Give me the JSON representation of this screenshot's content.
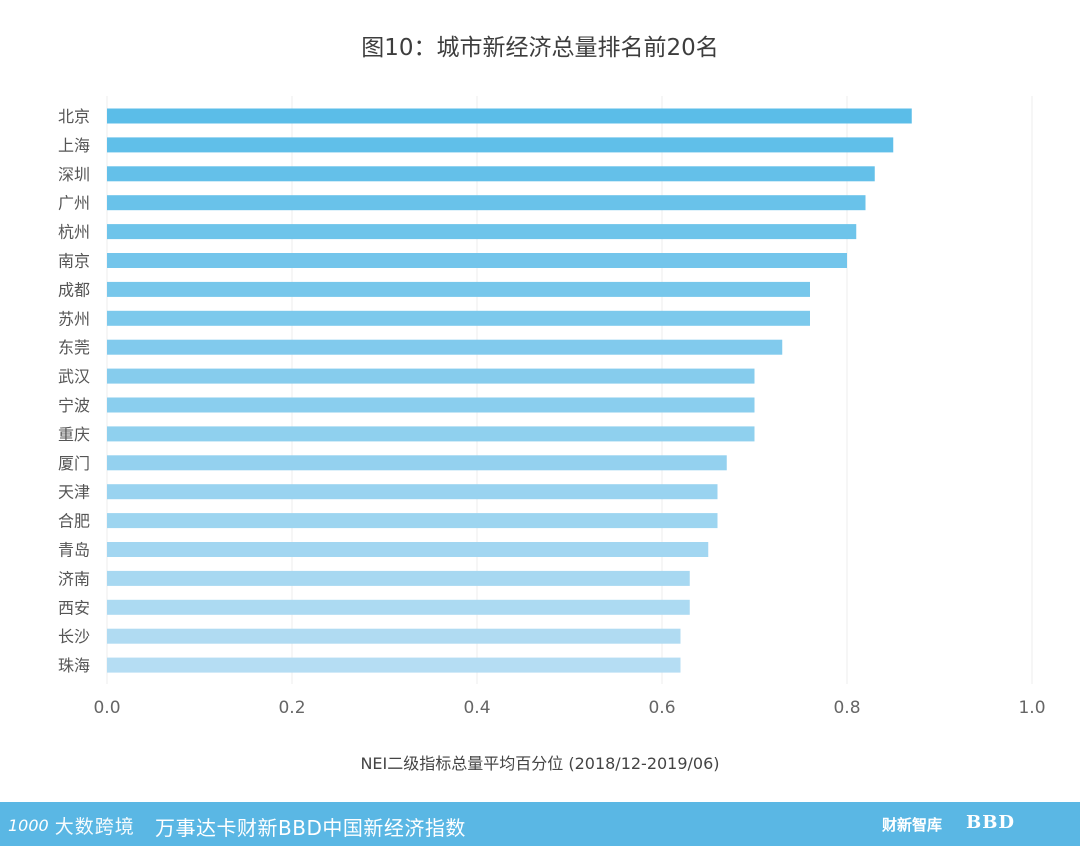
{
  "title": "图10：城市新经济总量排名前20名",
  "chart_data": {
    "type": "bar",
    "orientation": "horizontal",
    "categories": [
      "北京",
      "上海",
      "深圳",
      "广州",
      "杭州",
      "南京",
      "成都",
      "苏州",
      "东莞",
      "武汉",
      "宁波",
      "重庆",
      "厦门",
      "天津",
      "合肥",
      "青岛",
      "济南",
      "西安",
      "长沙",
      "珠海"
    ],
    "values": [
      0.87,
      0.85,
      0.83,
      0.82,
      0.81,
      0.8,
      0.76,
      0.76,
      0.73,
      0.7,
      0.7,
      0.7,
      0.67,
      0.66,
      0.66,
      0.65,
      0.63,
      0.63,
      0.62,
      0.62
    ],
    "xlim": [
      0,
      1.0
    ],
    "xticks": [
      "0.0",
      "0.2",
      "0.4",
      "0.6",
      "0.8",
      "1.0"
    ],
    "xlabel": "NEI二级指标总量平均百分位 (2018/12-2019/06)",
    "grid": "vertical",
    "colors": {
      "top": "#5bbde8",
      "bottom": "#b5ddf3"
    }
  },
  "footer": {
    "brand_mark": "1000",
    "brand_name": "大数跨境",
    "title": "万事达卡财新BBD中国新经济指数",
    "logo_caixin": "财新智库",
    "logo_bbd": "BBD"
  }
}
